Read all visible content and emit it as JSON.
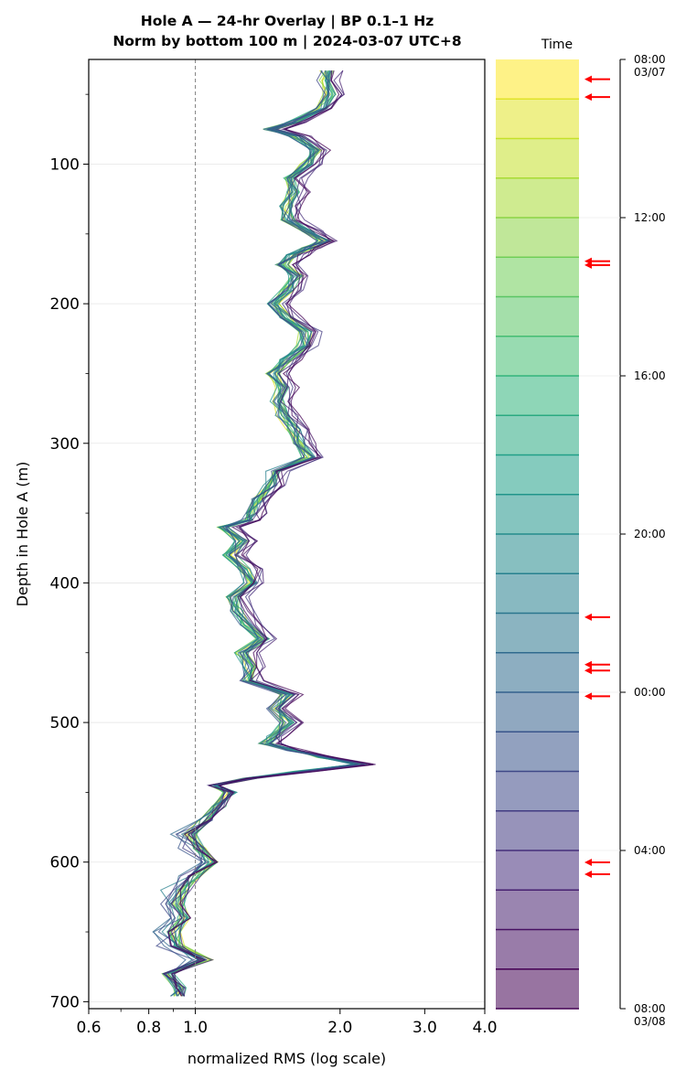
{
  "title_line1": "Hole A — 24-hr Overlay  |  BP 0.1–1 Hz",
  "title_line2": "Norm by bottom 100 m  |  2024-03-07 UTC+8",
  "colorbar_title": "Time",
  "colorbar_ticks": [
    {
      "line1": "08:00",
      "line2": "03/07"
    },
    {
      "line1": "12:00",
      "line2": ""
    },
    {
      "line1": "16:00",
      "line2": ""
    },
    {
      "line1": "20:00",
      "line2": ""
    },
    {
      "line1": "00:00",
      "line2": ""
    },
    {
      "line1": "04:00",
      "line2": ""
    },
    {
      "line1": "08:00",
      "line2": "03/08"
    }
  ],
  "chart_data": {
    "type": "line",
    "title": "Hole A — 24-hr Overlay  |  BP 0.1–1 Hz\nNorm by bottom 100 m  |  2024-03-07 UTC+8",
    "xlabel": "normalized RMS  (log scale)",
    "ylabel": "Depth in Hole A (m)",
    "x_scale": "log",
    "xlim": [
      0.6,
      4.0
    ],
    "ylim": [
      705,
      25
    ],
    "y_inverted": true,
    "x_ticks": [
      "0.6",
      "0.8",
      "1.0",
      "2.0",
      "3.0",
      "4.0"
    ],
    "y_ticks": [
      "100",
      "200",
      "300",
      "400",
      "500",
      "600",
      "700"
    ],
    "reference_line_x": 1.0,
    "grid": "horizontal",
    "colormap": "viridis",
    "series_count": 24,
    "time_start": "08:00 03/07",
    "time_end": "08:00 03/08",
    "base_profile": [
      [
        33,
        1.88
      ],
      [
        40,
        1.85
      ],
      [
        50,
        1.9
      ],
      [
        60,
        1.82
      ],
      [
        70,
        1.6
      ],
      [
        75,
        1.43
      ],
      [
        80,
        1.62
      ],
      [
        90,
        1.78
      ],
      [
        100,
        1.7
      ],
      [
        110,
        1.58
      ],
      [
        120,
        1.6
      ],
      [
        130,
        1.55
      ],
      [
        140,
        1.56
      ],
      [
        148,
        1.72
      ],
      [
        155,
        1.85
      ],
      [
        160,
        1.72
      ],
      [
        165,
        1.6
      ],
      [
        172,
        1.52
      ],
      [
        180,
        1.62
      ],
      [
        190,
        1.56
      ],
      [
        200,
        1.45
      ],
      [
        210,
        1.55
      ],
      [
        220,
        1.7
      ],
      [
        230,
        1.68
      ],
      [
        240,
        1.55
      ],
      [
        250,
        1.45
      ],
      [
        260,
        1.52
      ],
      [
        270,
        1.48
      ],
      [
        280,
        1.52
      ],
      [
        290,
        1.6
      ],
      [
        300,
        1.65
      ],
      [
        310,
        1.72
      ],
      [
        320,
        1.45
      ],
      [
        330,
        1.43
      ],
      [
        340,
        1.35
      ],
      [
        350,
        1.3
      ],
      [
        355,
        1.28
      ],
      [
        360,
        1.15
      ],
      [
        370,
        1.25
      ],
      [
        380,
        1.18
      ],
      [
        390,
        1.27
      ],
      [
        400,
        1.3
      ],
      [
        410,
        1.2
      ],
      [
        420,
        1.22
      ],
      [
        430,
        1.28
      ],
      [
        440,
        1.38
      ],
      [
        450,
        1.25
      ],
      [
        460,
        1.3
      ],
      [
        470,
        1.28
      ],
      [
        480,
        1.55
      ],
      [
        490,
        1.45
      ],
      [
        500,
        1.55
      ],
      [
        510,
        1.45
      ],
      [
        515,
        1.4
      ],
      [
        520,
        1.6
      ],
      [
        525,
        1.85
      ],
      [
        530,
        2.2
      ],
      [
        535,
        1.65
      ],
      [
        540,
        1.3
      ],
      [
        545,
        1.1
      ],
      [
        550,
        1.18
      ],
      [
        560,
        1.12
      ],
      [
        570,
        1.05
      ],
      [
        580,
        0.98
      ],
      [
        590,
        1.02
      ],
      [
        600,
        1.08
      ],
      [
        610,
        1.0
      ],
      [
        620,
        0.95
      ],
      [
        630,
        0.92
      ],
      [
        640,
        0.95
      ],
      [
        650,
        0.9
      ],
      [
        660,
        0.92
      ],
      [
        670,
        1.05
      ],
      [
        680,
        0.88
      ],
      [
        690,
        0.93
      ],
      [
        696,
        0.92
      ]
    ],
    "arrow_times_hours": [
      0.5,
      0.95,
      5.1,
      5.2,
      14.1,
      15.3,
      15.45,
      16.1,
      20.3,
      20.6
    ]
  }
}
